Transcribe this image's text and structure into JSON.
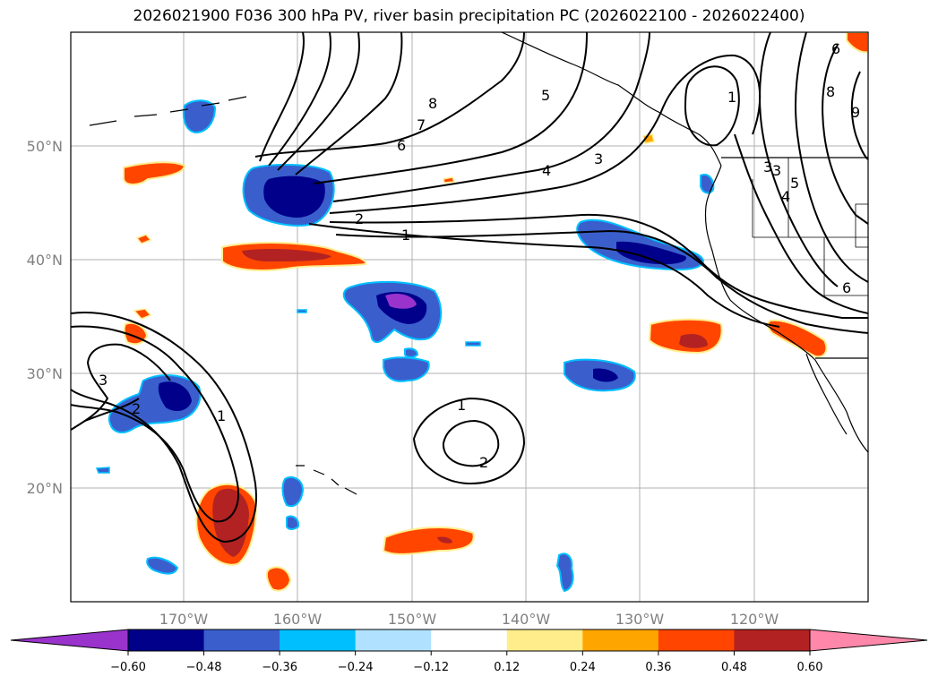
{
  "title": "2026021900 F036 300 hPa PV, river basin precipitation PC (2026022100 - 2026022400)",
  "map": {
    "lon_labels": [
      "170°W",
      "160°W",
      "150°W",
      "140°W",
      "130°W",
      "120°W"
    ],
    "lat_labels": [
      "50°N",
      "40°N",
      "30°N",
      "20°N"
    ],
    "contour_labels": [
      "8",
      "7",
      "6",
      "5",
      "4",
      "3",
      "2",
      "1",
      "1",
      "3",
      "3",
      "4",
      "5",
      "6",
      "6",
      "8",
      "9",
      "3",
      "2",
      "1",
      "1",
      "2"
    ],
    "colors": {
      "land_outline": "#000000",
      "grid": "#b0b0b0",
      "ocean": "#ffffff"
    }
  },
  "colorbar": {
    "tick_labels": [
      "−0.60",
      "−0.48",
      "−0.36",
      "−0.24",
      "−0.12",
      "0.12",
      "0.24",
      "0.36",
      "0.48",
      "0.60"
    ],
    "colors": [
      "#9933cc",
      "#00008b",
      "#3a5fcd",
      "#00bfff",
      "#b0e2ff",
      "#ffffff",
      "#ffec8b",
      "#ffa500",
      "#ff4500",
      "#b22222",
      "#ff88aa"
    ]
  }
}
